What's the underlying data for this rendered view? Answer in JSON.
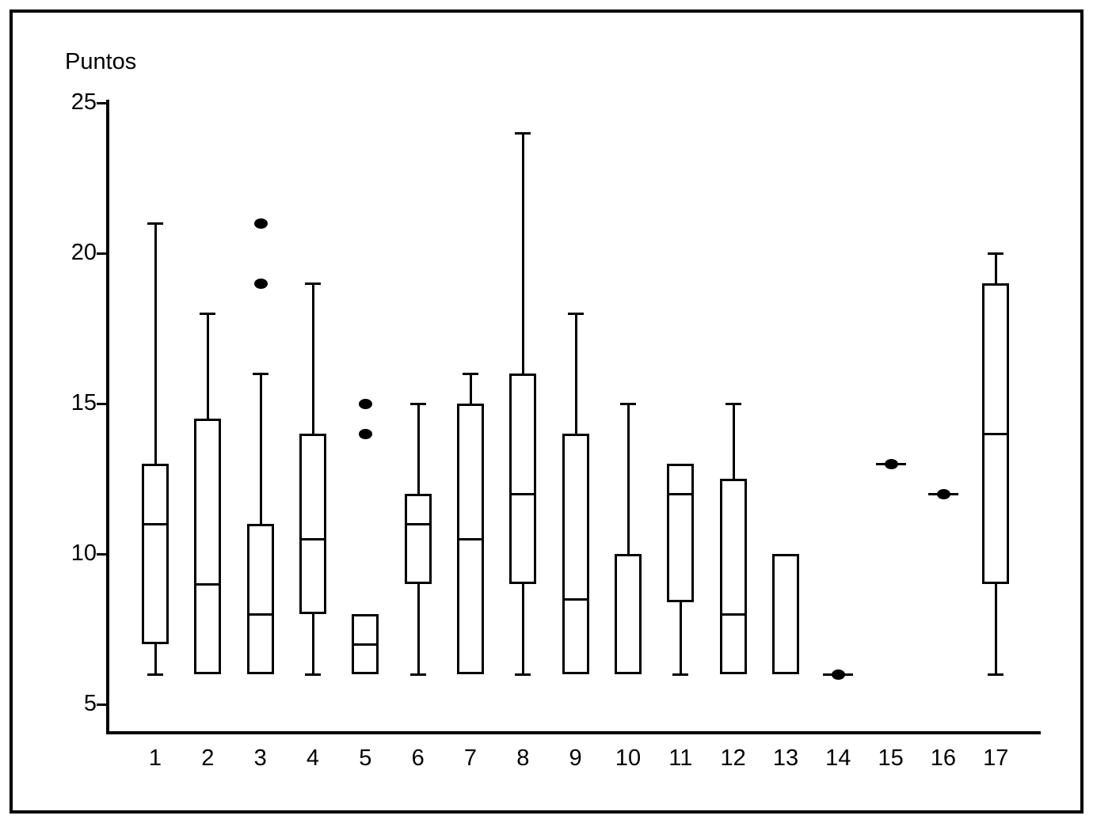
{
  "figure": {
    "background_color": "#ffffff",
    "foreground_color": "#000000",
    "frame": "single black rectangular border around whole figure"
  },
  "chart_data": {
    "type": "boxplot",
    "title": "Puntos",
    "ylabel": "Puntos",
    "xlabel": "",
    "grid": false,
    "legend": "none",
    "ylim": [
      5,
      25
    ],
    "yticks": [
      5,
      10,
      15,
      20,
      25
    ],
    "categories": [
      "1",
      "2",
      "3",
      "4",
      "5",
      "6",
      "7",
      "8",
      "9",
      "10",
      "11",
      "12",
      "13",
      "14",
      "15",
      "16",
      "17"
    ],
    "boxes": [
      {
        "category": "1",
        "whisker_low": 6,
        "q1": 7,
        "median": 11,
        "q3": 13,
        "whisker_high": 21,
        "outliers": []
      },
      {
        "category": "2",
        "whisker_low": null,
        "q1": 6,
        "median": 9,
        "q3": 14.5,
        "whisker_high": 18,
        "outliers": []
      },
      {
        "category": "3",
        "whisker_low": null,
        "q1": 6,
        "median": 8,
        "q3": 11,
        "whisker_high": 16,
        "outliers": [
          19,
          21
        ]
      },
      {
        "category": "4",
        "whisker_low": 6,
        "q1": 8,
        "median": 10.5,
        "q3": 14,
        "whisker_high": 19,
        "outliers": []
      },
      {
        "category": "5",
        "whisker_low": null,
        "q1": 6,
        "median": 7,
        "q3": 8,
        "whisker_high": null,
        "outliers": [
          14,
          15
        ]
      },
      {
        "category": "6",
        "whisker_low": 6,
        "q1": 9,
        "median": 11,
        "q3": 12,
        "whisker_high": 15,
        "outliers": []
      },
      {
        "category": "7",
        "whisker_low": null,
        "q1": 6,
        "median": 10.5,
        "q3": 15,
        "whisker_high": 16,
        "outliers": []
      },
      {
        "category": "8",
        "whisker_low": 6,
        "q1": 9,
        "median": 12,
        "q3": 16,
        "whisker_high": 24,
        "outliers": []
      },
      {
        "category": "9",
        "whisker_low": null,
        "q1": 6,
        "median": 8.5,
        "q3": 14,
        "whisker_high": 18,
        "outliers": []
      },
      {
        "category": "10",
        "whisker_low": null,
        "q1": 6,
        "median": null,
        "q3": 10,
        "whisker_high": 15,
        "outliers": []
      },
      {
        "category": "11",
        "whisker_low": 6,
        "q1": 8.4,
        "median": 12,
        "q3": 13,
        "whisker_high": null,
        "outliers": []
      },
      {
        "category": "12",
        "whisker_low": null,
        "q1": 6,
        "median": 8,
        "q3": 12.5,
        "whisker_high": 15,
        "outliers": []
      },
      {
        "category": "13",
        "whisker_low": null,
        "q1": 6,
        "median": null,
        "q3": 10,
        "whisker_high": null,
        "outliers": []
      },
      {
        "category": "14",
        "type": "point",
        "value": 6
      },
      {
        "category": "15",
        "type": "point",
        "value": 13
      },
      {
        "category": "16",
        "type": "point",
        "value": 12
      },
      {
        "category": "17",
        "whisker_low": 6,
        "q1": 9,
        "median": 14,
        "q3": 19,
        "whisker_high": 20,
        "outliers": []
      }
    ]
  }
}
